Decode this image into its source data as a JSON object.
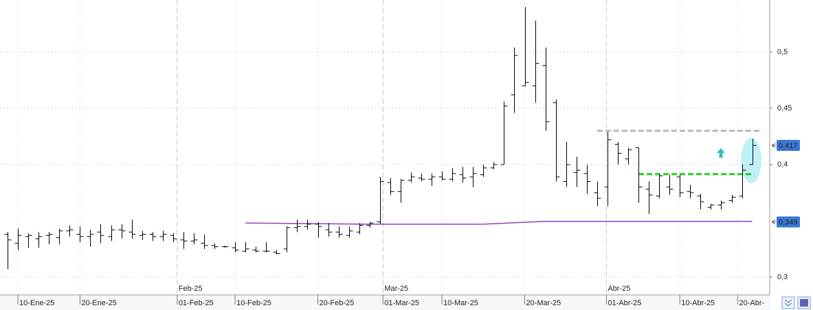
{
  "chart_data": {
    "type": "ohlc",
    "color": "#000000",
    "categories": [
      null,
      null,
      null,
      null,
      null,
      null,
      null,
      null,
      null,
      null,
      null,
      null,
      null,
      null,
      null,
      null,
      null,
      null,
      null,
      null,
      null,
      null,
      null,
      null,
      null,
      null,
      null,
      null,
      null,
      null,
      null,
      null,
      null,
      null,
      null,
      null,
      null,
      null,
      null,
      null,
      null,
      null,
      null,
      null,
      null,
      null,
      null,
      null,
      null,
      null,
      null,
      null,
      null,
      null,
      null,
      null,
      null,
      null,
      null,
      null,
      null,
      null,
      null,
      null,
      null,
      null,
      null,
      null,
      null,
      null,
      null,
      null,
      null
    ],
    "open": [
      0.338,
      0.33,
      0.336,
      0.334,
      0.337,
      0.335,
      0.341,
      0.338,
      0.336,
      0.34,
      0.336,
      0.342,
      0.34,
      0.337,
      0.338,
      0.336,
      0.337,
      0.333,
      0.332,
      0.33,
      0.328,
      0.327,
      0.326,
      0.323,
      0.324,
      0.323,
      0.322,
      0.325,
      0.344,
      0.345,
      0.347,
      0.342,
      0.34,
      0.337,
      0.34,
      0.346,
      0.349,
      0.384,
      0.376,
      0.386,
      0.388,
      0.387,
      0.389,
      0.387,
      0.391,
      0.389,
      0.391,
      0.397,
      0.4,
      0.462,
      0.47,
      0.47,
      0.488,
      0.455,
      0.385,
      0.393,
      0.392,
      0.375,
      0.38,
      0.418,
      0.405,
      0.415,
      0.378,
      0.372,
      0.38,
      0.389,
      0.376,
      0.372,
      0.362,
      0.364,
      0.368,
      0.372,
      0.4
    ],
    "high": [
      0.34,
      0.343,
      0.339,
      0.34,
      0.34,
      0.343,
      0.346,
      0.345,
      0.342,
      0.347,
      0.346,
      0.347,
      0.351,
      0.341,
      0.34,
      0.341,
      0.339,
      0.34,
      0.339,
      0.338,
      0.33,
      0.328,
      0.331,
      0.331,
      0.327,
      0.331,
      0.324,
      0.345,
      0.351,
      0.351,
      0.349,
      0.348,
      0.345,
      0.345,
      0.348,
      0.349,
      0.389,
      0.388,
      0.387,
      0.393,
      0.392,
      0.392,
      0.394,
      0.397,
      0.398,
      0.398,
      0.4,
      0.402,
      0.456,
      0.504,
      0.54,
      0.528,
      0.504,
      0.458,
      0.42,
      0.407,
      0.4,
      0.385,
      0.429,
      0.42,
      0.415,
      0.415,
      0.385,
      0.391,
      0.391,
      0.391,
      0.382,
      0.374,
      0.365,
      0.368,
      0.373,
      0.4,
      0.423
    ],
    "low": [
      0.307,
      0.324,
      0.326,
      0.326,
      0.329,
      0.329,
      0.336,
      0.331,
      0.327,
      0.33,
      0.332,
      0.334,
      0.334,
      0.333,
      0.332,
      0.332,
      0.331,
      0.325,
      0.329,
      0.325,
      0.325,
      0.326,
      0.322,
      0.322,
      0.322,
      0.322,
      0.32,
      0.322,
      0.34,
      0.342,
      0.335,
      0.336,
      0.335,
      0.335,
      0.338,
      0.344,
      0.347,
      0.373,
      0.366,
      0.384,
      0.385,
      0.381,
      0.386,
      0.385,
      0.384,
      0.38,
      0.389,
      0.396,
      0.4,
      0.446,
      0.47,
      0.455,
      0.43,
      0.385,
      0.38,
      0.38,
      0.374,
      0.363,
      0.363,
      0.4,
      0.4,
      0.366,
      0.356,
      0.37,
      0.373,
      0.371,
      0.37,
      0.36,
      0.36,
      0.36,
      0.366,
      0.37,
      0.4
    ],
    "close": [
      0.333,
      0.337,
      0.337,
      0.336,
      0.338,
      0.341,
      0.342,
      0.336,
      0.338,
      0.337,
      0.342,
      0.341,
      0.338,
      0.338,
      0.336,
      0.338,
      0.334,
      0.332,
      0.333,
      0.328,
      0.327,
      0.327,
      0.324,
      0.325,
      0.323,
      0.323,
      0.321,
      0.344,
      0.345,
      0.347,
      0.345,
      0.34,
      0.338,
      0.341,
      0.346,
      0.348,
      0.385,
      0.376,
      0.386,
      0.389,
      0.387,
      0.389,
      0.387,
      0.392,
      0.388,
      0.392,
      0.397,
      0.4,
      0.452,
      0.497,
      0.473,
      0.49,
      0.438,
      0.389,
      0.4,
      0.395,
      0.385,
      0.37,
      0.422,
      0.41,
      0.413,
      0.38,
      0.373,
      0.39,
      0.378,
      0.375,
      0.375,
      0.367,
      0.364,
      0.366,
      0.371,
      0.395,
      0.417
    ],
    "ylim": [
      0.2841,
      0.5463
    ],
    "yticks": [
      {
        "value": 0.3,
        "label": "0,3"
      },
      {
        "value": 0.4,
        "label": "0,4"
      },
      {
        "value": 0.45,
        "label": "0,45"
      },
      {
        "value": 0.5,
        "label": "0,5"
      }
    ],
    "xticks": [
      {
        "value": 1,
        "label": "10-Ene-25"
      },
      {
        "value": 7,
        "label": "20-Ene-25"
      },
      {
        "value": 16.4,
        "label": "01-Feb-25"
      },
      {
        "value": 22,
        "label": "10-Feb-25"
      },
      {
        "value": 30,
        "label": "20-Feb-25"
      },
      {
        "value": 36.3,
        "label": "01-Mar-25"
      },
      {
        "value": 42,
        "label": "10-Mar-25"
      },
      {
        "value": 50,
        "label": "20-Mar-25"
      },
      {
        "value": 57.9,
        "label": "01-Abr-25"
      },
      {
        "value": 65,
        "label": "10-Abr-25"
      },
      {
        "value": 70.6,
        "label": "20-Abr-"
      }
    ],
    "month_ticks": [
      {
        "value": 16.4,
        "label": "Feb-25"
      },
      {
        "value": 36.3,
        "label": "Mar-25"
      },
      {
        "value": 57.9,
        "label": "Abr-25"
      }
    ],
    "grid": true,
    "lines": [
      {
        "color": "#8e3fc0",
        "x": [
          23,
          35,
          46,
          52,
          72
        ],
        "values": [
          0.348,
          0.347,
          0.347,
          0.3495,
          0.3495
        ]
      }
    ],
    "levels": [
      {
        "value": 0.43,
        "x": [
          57,
          73
        ],
        "color": "#b8b8b8"
      },
      {
        "value": 0.3915,
        "x": [
          61,
          72
        ],
        "color": "#22cc22"
      }
    ],
    "price_labels": [
      {
        "value": 0.417,
        "label": "0,417"
      },
      {
        "value": 0.349,
        "label": "0,349"
      }
    ]
  }
}
